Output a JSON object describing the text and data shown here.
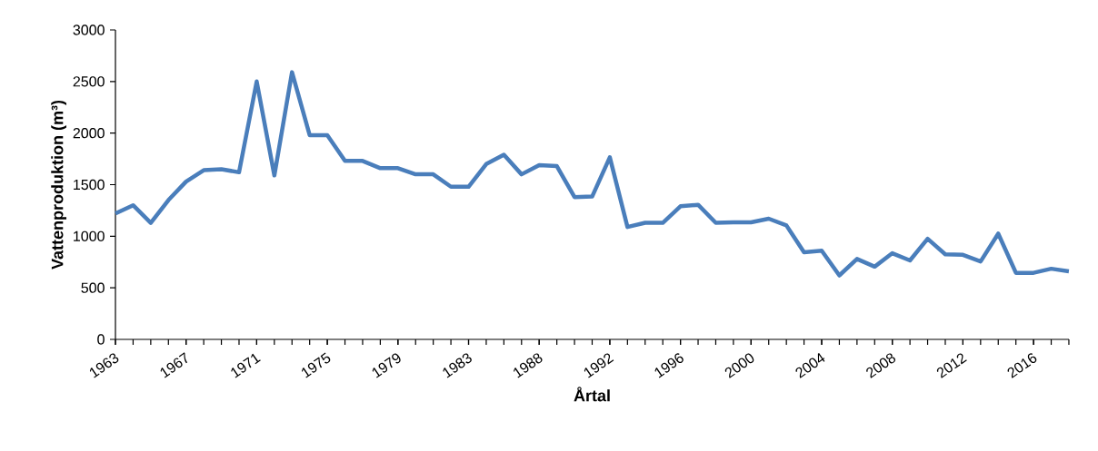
{
  "chart_data": {
    "type": "line",
    "xlabel": "Årtal",
    "ylabel": "Vattenproduktion (m³)",
    "categories": [
      "1963",
      null,
      null,
      null,
      "1967",
      null,
      null,
      null,
      "1971",
      null,
      null,
      null,
      "1975",
      null,
      null,
      null,
      "1979",
      null,
      null,
      null,
      "1983",
      null,
      null,
      null,
      "1988",
      null,
      null,
      null,
      "1992",
      null,
      null,
      null,
      "1996",
      null,
      null,
      null,
      "2000",
      null,
      null,
      null,
      "2004",
      null,
      null,
      null,
      "2008",
      null,
      null,
      null,
      "2012",
      null,
      null,
      null,
      "2016",
      null,
      null
    ],
    "values": [
      1220,
      1300,
      1130,
      1350,
      1530,
      1640,
      1650,
      1620,
      2500,
      1590,
      2590,
      1980,
      1980,
      1730,
      1730,
      1660,
      1660,
      1600,
      1600,
      1480,
      1480,
      1700,
      1790,
      1600,
      1690,
      1680,
      1380,
      1385,
      1765,
      1090,
      1130,
      1130,
      1290,
      1305,
      1130,
      1135,
      1135,
      1170,
      1105,
      845,
      860,
      620,
      780,
      705,
      835,
      765,
      975,
      825,
      820,
      755,
      1025,
      645,
      645,
      685,
      660
    ],
    "color": "#4a7ebb",
    "ylim": [
      0,
      3000
    ],
    "yticks": [
      0,
      500,
      1000,
      1500,
      2000,
      2500,
      3000
    ],
    "grid": false,
    "marker": "none",
    "line_style": "solid"
  }
}
